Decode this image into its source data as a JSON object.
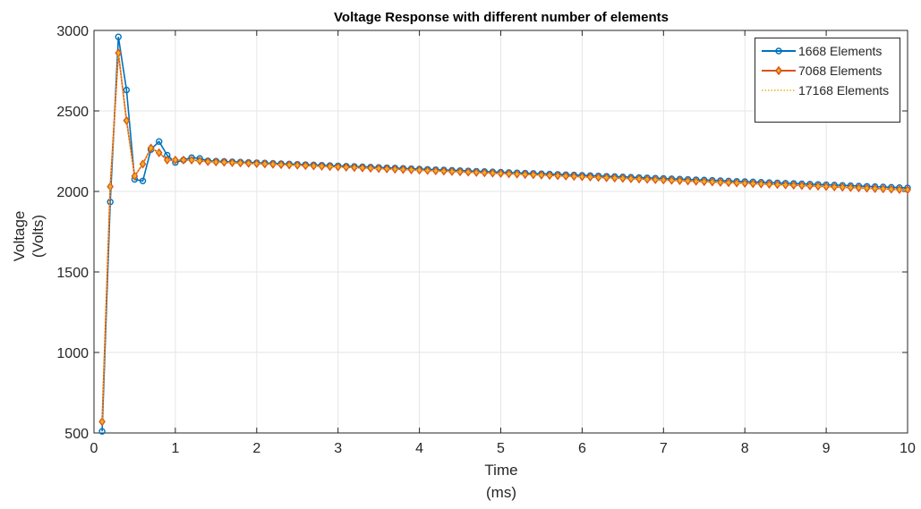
{
  "chart_data": {
    "type": "line",
    "title": "Voltage Response with different number of elements",
    "xlabel": [
      "Time",
      "(ms)"
    ],
    "ylabel": [
      "Voltage",
      "(Volts)"
    ],
    "xlim": [
      0,
      10
    ],
    "ylim": [
      500,
      3000
    ],
    "xticks": [
      "0",
      "1",
      "2",
      "3",
      "4",
      "5",
      "6",
      "7",
      "8",
      "9",
      "10"
    ],
    "yticks": [
      "500",
      "1000",
      "1500",
      "2000",
      "2500",
      "3000"
    ],
    "grid": true,
    "legend_position": "top-right",
    "series": [
      {
        "name": "1668 Elements",
        "color": "#0072BD",
        "marker": "circle",
        "line": "solid",
        "x": [
          0.1,
          0.2,
          0.3,
          0.4,
          0.5,
          0.6,
          0.7,
          0.8,
          0.9,
          1.0,
          1.1,
          1.2,
          1.3
        ],
        "y": [
          510,
          1935,
          2960,
          2630,
          2075,
          2065,
          2260,
          2310,
          2225,
          2180,
          2195,
          2210,
          2205
        ],
        "tail": {
          "x_start": 1.4,
          "x_end": 10.0,
          "step": 0.1,
          "y_start": 2190,
          "y_end": 2022
        }
      },
      {
        "name": "7068 Elements",
        "color": "#D95319",
        "marker": "diamond",
        "line": "solid",
        "x": [
          0.1,
          0.2,
          0.3,
          0.4,
          0.5,
          0.6,
          0.7,
          0.8,
          0.9,
          1.0,
          1.1,
          1.2,
          1.3
        ],
        "y": [
          570,
          2030,
          2860,
          2440,
          2095,
          2170,
          2270,
          2240,
          2195,
          2195,
          2195,
          2195,
          2190
        ],
        "tail": {
          "x_start": 1.4,
          "x_end": 10.0,
          "step": 0.1,
          "y_start": 2185,
          "y_end": 2010
        }
      },
      {
        "name": "17168 Elements",
        "color": "#EDB120",
        "marker": "none",
        "line": "dotted",
        "x": [
          0.1,
          0.2,
          0.3,
          0.4,
          0.5,
          0.6,
          0.7,
          0.8,
          0.9,
          1.0,
          1.1,
          1.2,
          1.3
        ],
        "y": [
          570,
          2030,
          2860,
          2440,
          2095,
          2170,
          2270,
          2240,
          2195,
          2195,
          2195,
          2195,
          2190
        ],
        "tail": {
          "x_start": 1.4,
          "x_end": 10.0,
          "step": 0.1,
          "y_start": 2185,
          "y_end": 2010
        }
      }
    ]
  }
}
